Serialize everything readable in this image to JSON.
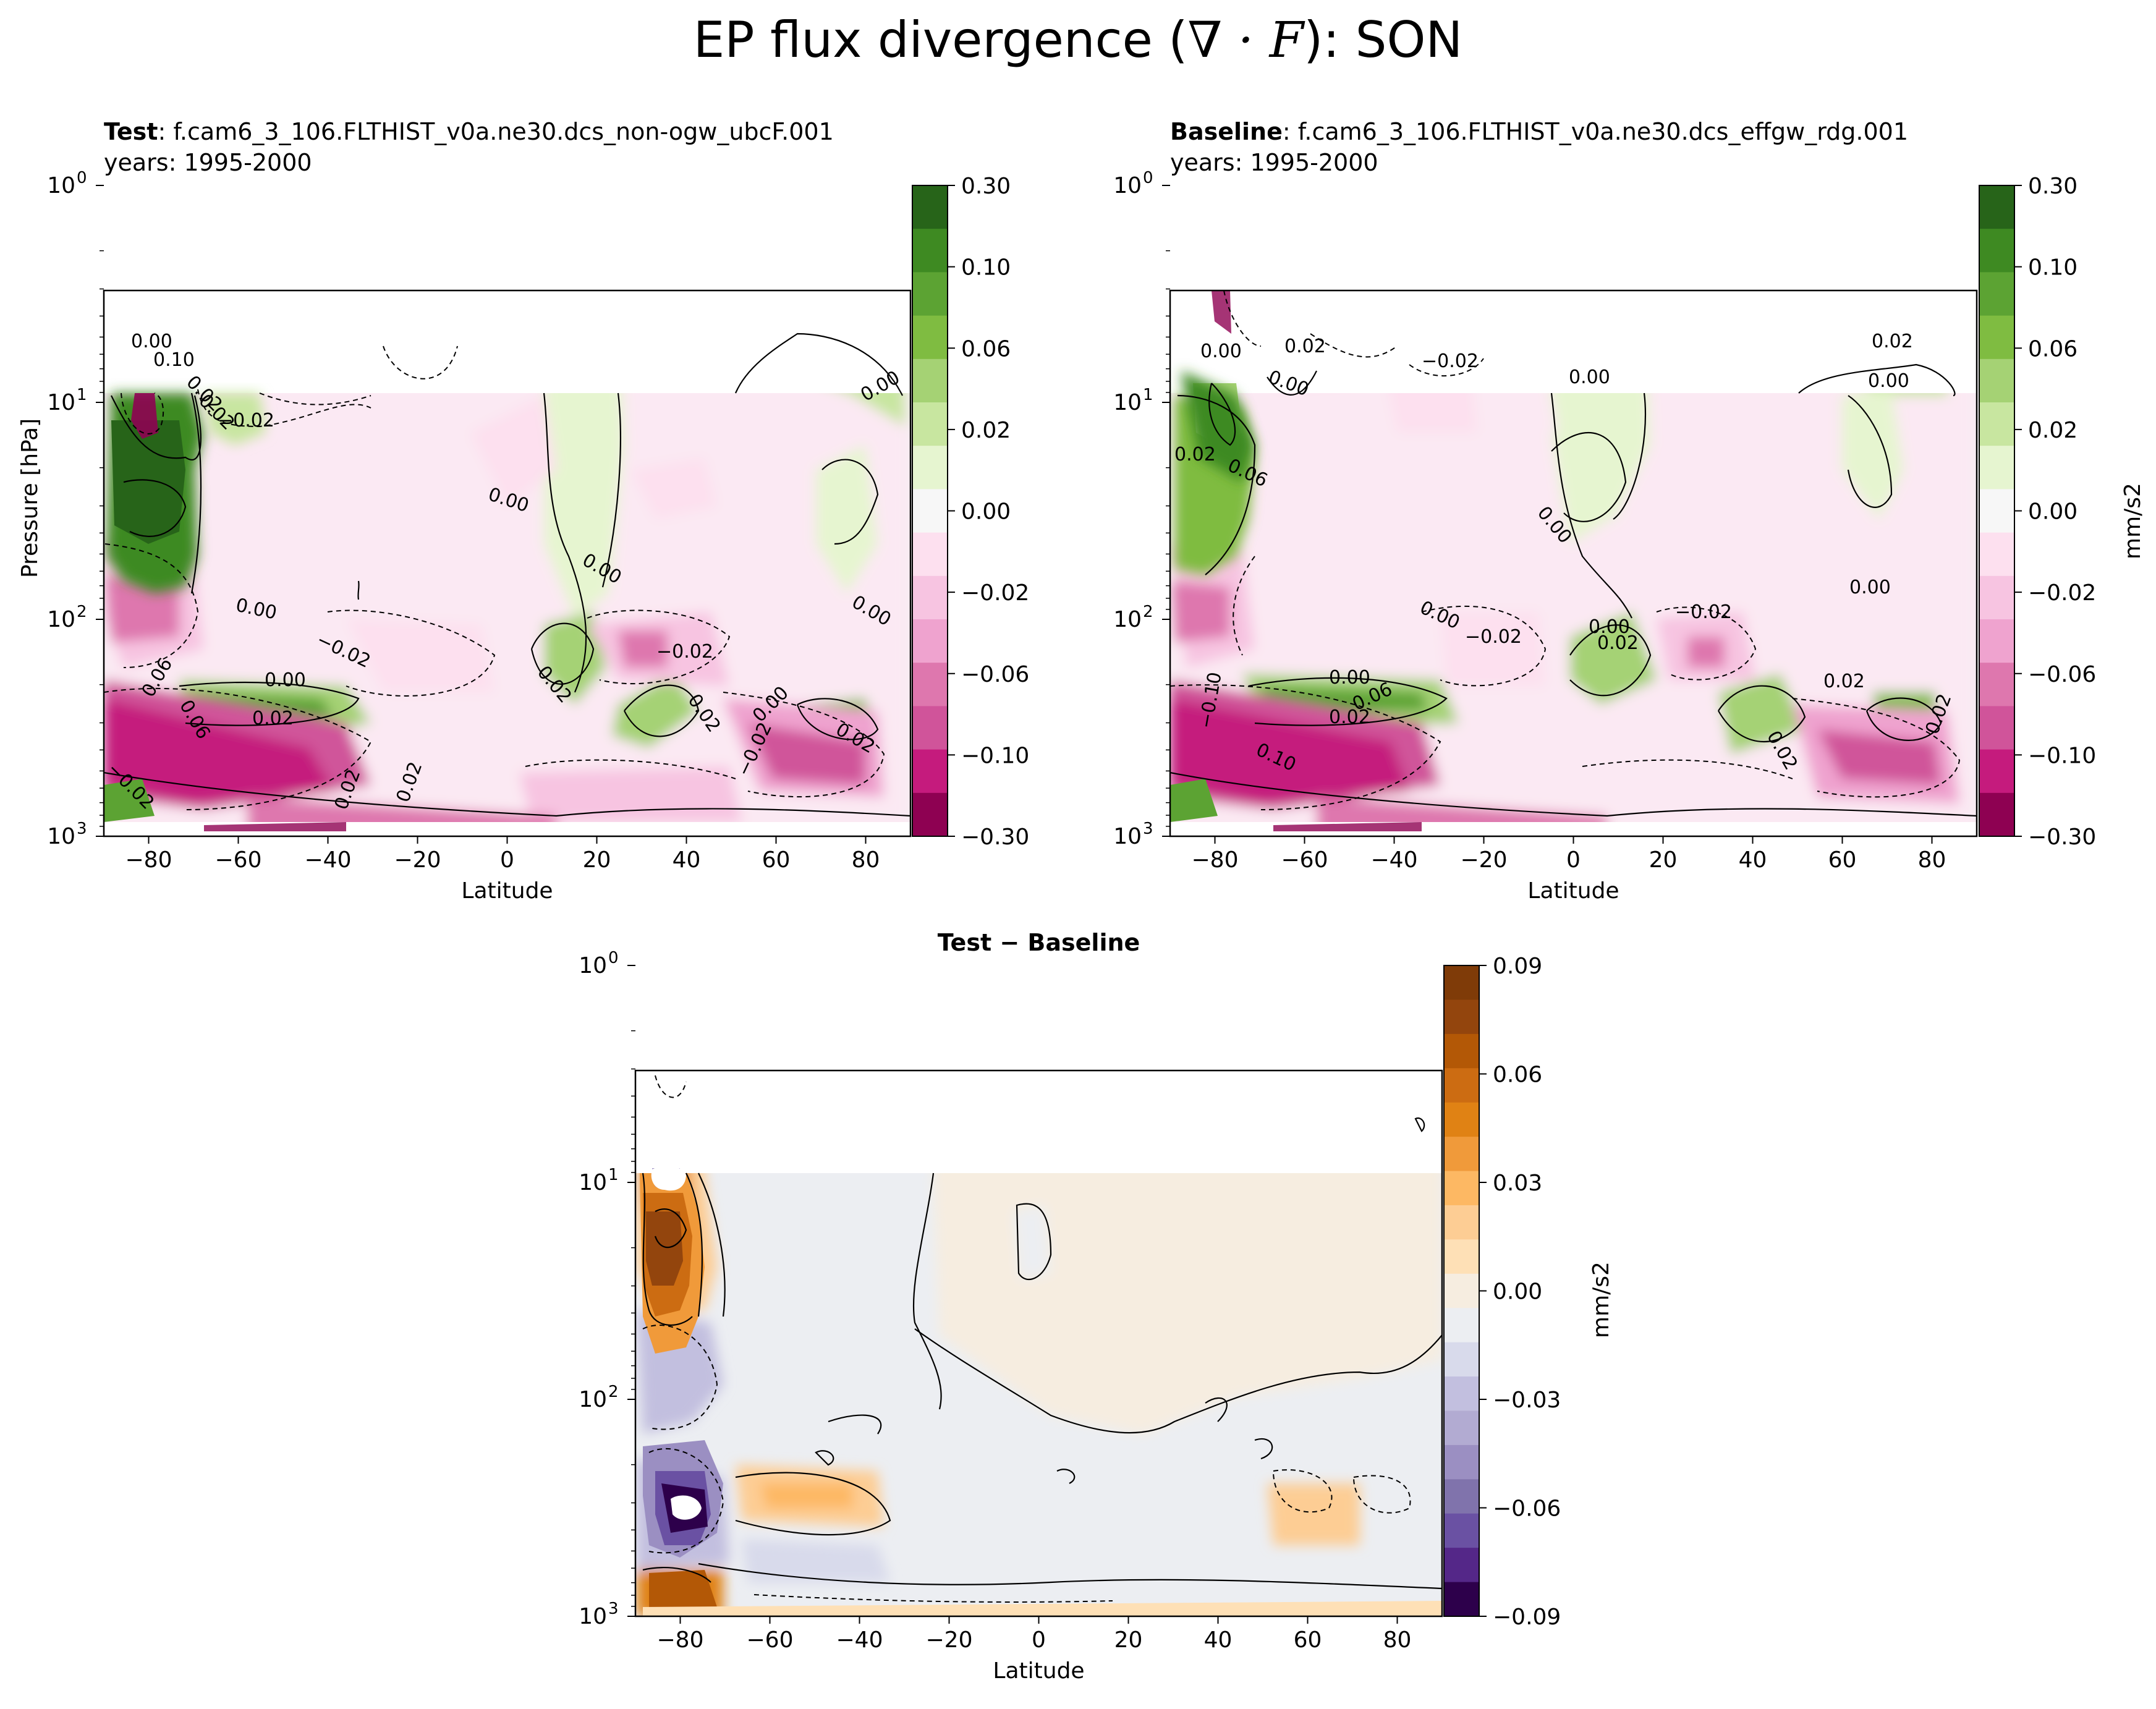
{
  "figure": {
    "title_prefix": "EP flux divergence (",
    "title_math": "∇ · F",
    "title_suffix": "): SON"
  },
  "chart_data": [
    {
      "type": "heatmap",
      "id": "test",
      "title_bold": "Test",
      "title_rest": ": f.cam6_3_106.FLTHIST_v0a.ne30.dcs_non-ogw_ubcF.001",
      "subtitle": "years: 1995-2000",
      "xlabel": "Latitude",
      "ylabel": "Pressure [hPa]",
      "x_ticks": [
        "−80",
        "−60",
        "−40",
        "−20",
        "0",
        "20",
        "40",
        "60",
        "80"
      ],
      "y_ticks": [
        "10",
        "10",
        "10",
        "10"
      ],
      "y_tick_exponents": [
        "0",
        "1",
        "2",
        "3"
      ],
      "xlim": [
        -90,
        90
      ],
      "ylim_hPa": [
        1000,
        1
      ],
      "y_scale": "log",
      "colorbar": {
        "label": "",
        "ticks": [
          "0.30",
          "0.10",
          "0.06",
          "0.02",
          "0.00",
          "−0.02",
          "−0.06",
          "−0.10",
          "−0.30"
        ],
        "colors": [
          "#276419",
          "#3e8a22",
          "#5ca333",
          "#7fbc41",
          "#a5d274",
          "#c8e6a0",
          "#e6f5d0",
          "#f7f7f7",
          "#fde0ef",
          "#f7c4e1",
          "#efa3cf",
          "#de77ae",
          "#d0549a",
          "#c51b7d",
          "#8e0152"
        ]
      },
      "contour_labels": [
        "0.00",
        "0.10",
        "0.02",
        "0.02",
        "−0.02",
        "0.00",
        "0.00",
        "0.00",
        "0.00",
        "0.00",
        "−0.02",
        "−0.02",
        "0.00",
        "0.02",
        "0.02",
        "0.02",
        "0.06",
        "0.06",
        "0.02",
        "−0.02",
        "0.00",
        "−0.02",
        "0.02",
        "0.02"
      ]
    },
    {
      "type": "heatmap",
      "id": "baseline",
      "title_bold": "Baseline",
      "title_rest": ": f.cam6_3_106.FLTHIST_v0a.ne30.dcs_effgw_rdg.001",
      "subtitle": "years: 1995-2000",
      "xlabel": "Latitude",
      "ylabel": "",
      "x_ticks": [
        "−80",
        "−60",
        "−40",
        "−20",
        "0",
        "20",
        "40",
        "60",
        "80"
      ],
      "y_ticks": [
        "10",
        "10",
        "10",
        "10"
      ],
      "y_tick_exponents": [
        "0",
        "1",
        "2",
        "3"
      ],
      "xlim": [
        -90,
        90
      ],
      "ylim_hPa": [
        1000,
        1
      ],
      "y_scale": "log",
      "colorbar": {
        "label": "mm/s2",
        "ticks": [
          "0.30",
          "0.10",
          "0.06",
          "0.02",
          "0.00",
          "−0.02",
          "−0.06",
          "−0.10",
          "−0.30"
        ],
        "colors": [
          "#276419",
          "#3e8a22",
          "#5ca333",
          "#7fbc41",
          "#a5d274",
          "#c8e6a0",
          "#e6f5d0",
          "#f7f7f7",
          "#fde0ef",
          "#f7c4e1",
          "#efa3cf",
          "#de77ae",
          "#d0549a",
          "#c51b7d",
          "#8e0152"
        ]
      },
      "contour_labels": [
        "0.00",
        "0.02",
        "0.00",
        "−0.02",
        "0.00",
        "0.02",
        "0.00",
        "0.02",
        "0.06",
        "0.00",
        "0.00",
        "−0.02",
        "0.00",
        "0.02",
        "−0.02",
        "0.00",
        "0.06",
        "0.02",
        "0.00",
        "0.02",
        "−0.10",
        "0.10",
        "0.02",
        "0.02"
      ]
    },
    {
      "type": "heatmap",
      "id": "diff",
      "title_bold": "Test − Baseline",
      "xlabel": "Latitude",
      "ylabel": "",
      "x_ticks": [
        "−80",
        "−60",
        "−40",
        "−20",
        "0",
        "20",
        "40",
        "60",
        "80"
      ],
      "y_ticks": [
        "10",
        "10",
        "10",
        "10"
      ],
      "y_tick_exponents": [
        "0",
        "1",
        "2",
        "3"
      ],
      "xlim": [
        -90,
        90
      ],
      "ylim_hPa": [
        1000,
        1
      ],
      "y_scale": "log",
      "colorbar": {
        "label": "mm/s2",
        "ticks": [
          "0.09",
          "0.06",
          "0.03",
          "0.00",
          "−0.03",
          "−0.06",
          "−0.09"
        ],
        "colors": [
          "#7f3b08",
          "#93450d",
          "#b35806",
          "#cc6c12",
          "#e08214",
          "#f09a3a",
          "#fdb863",
          "#fdcd94",
          "#fee0b6",
          "#f6ede0",
          "#eceef2",
          "#d8daeb",
          "#c2bfdf",
          "#b2abd2",
          "#9b8fc2",
          "#8073ac",
          "#6a51a3",
          "#542788",
          "#2d004b"
        ]
      }
    }
  ]
}
